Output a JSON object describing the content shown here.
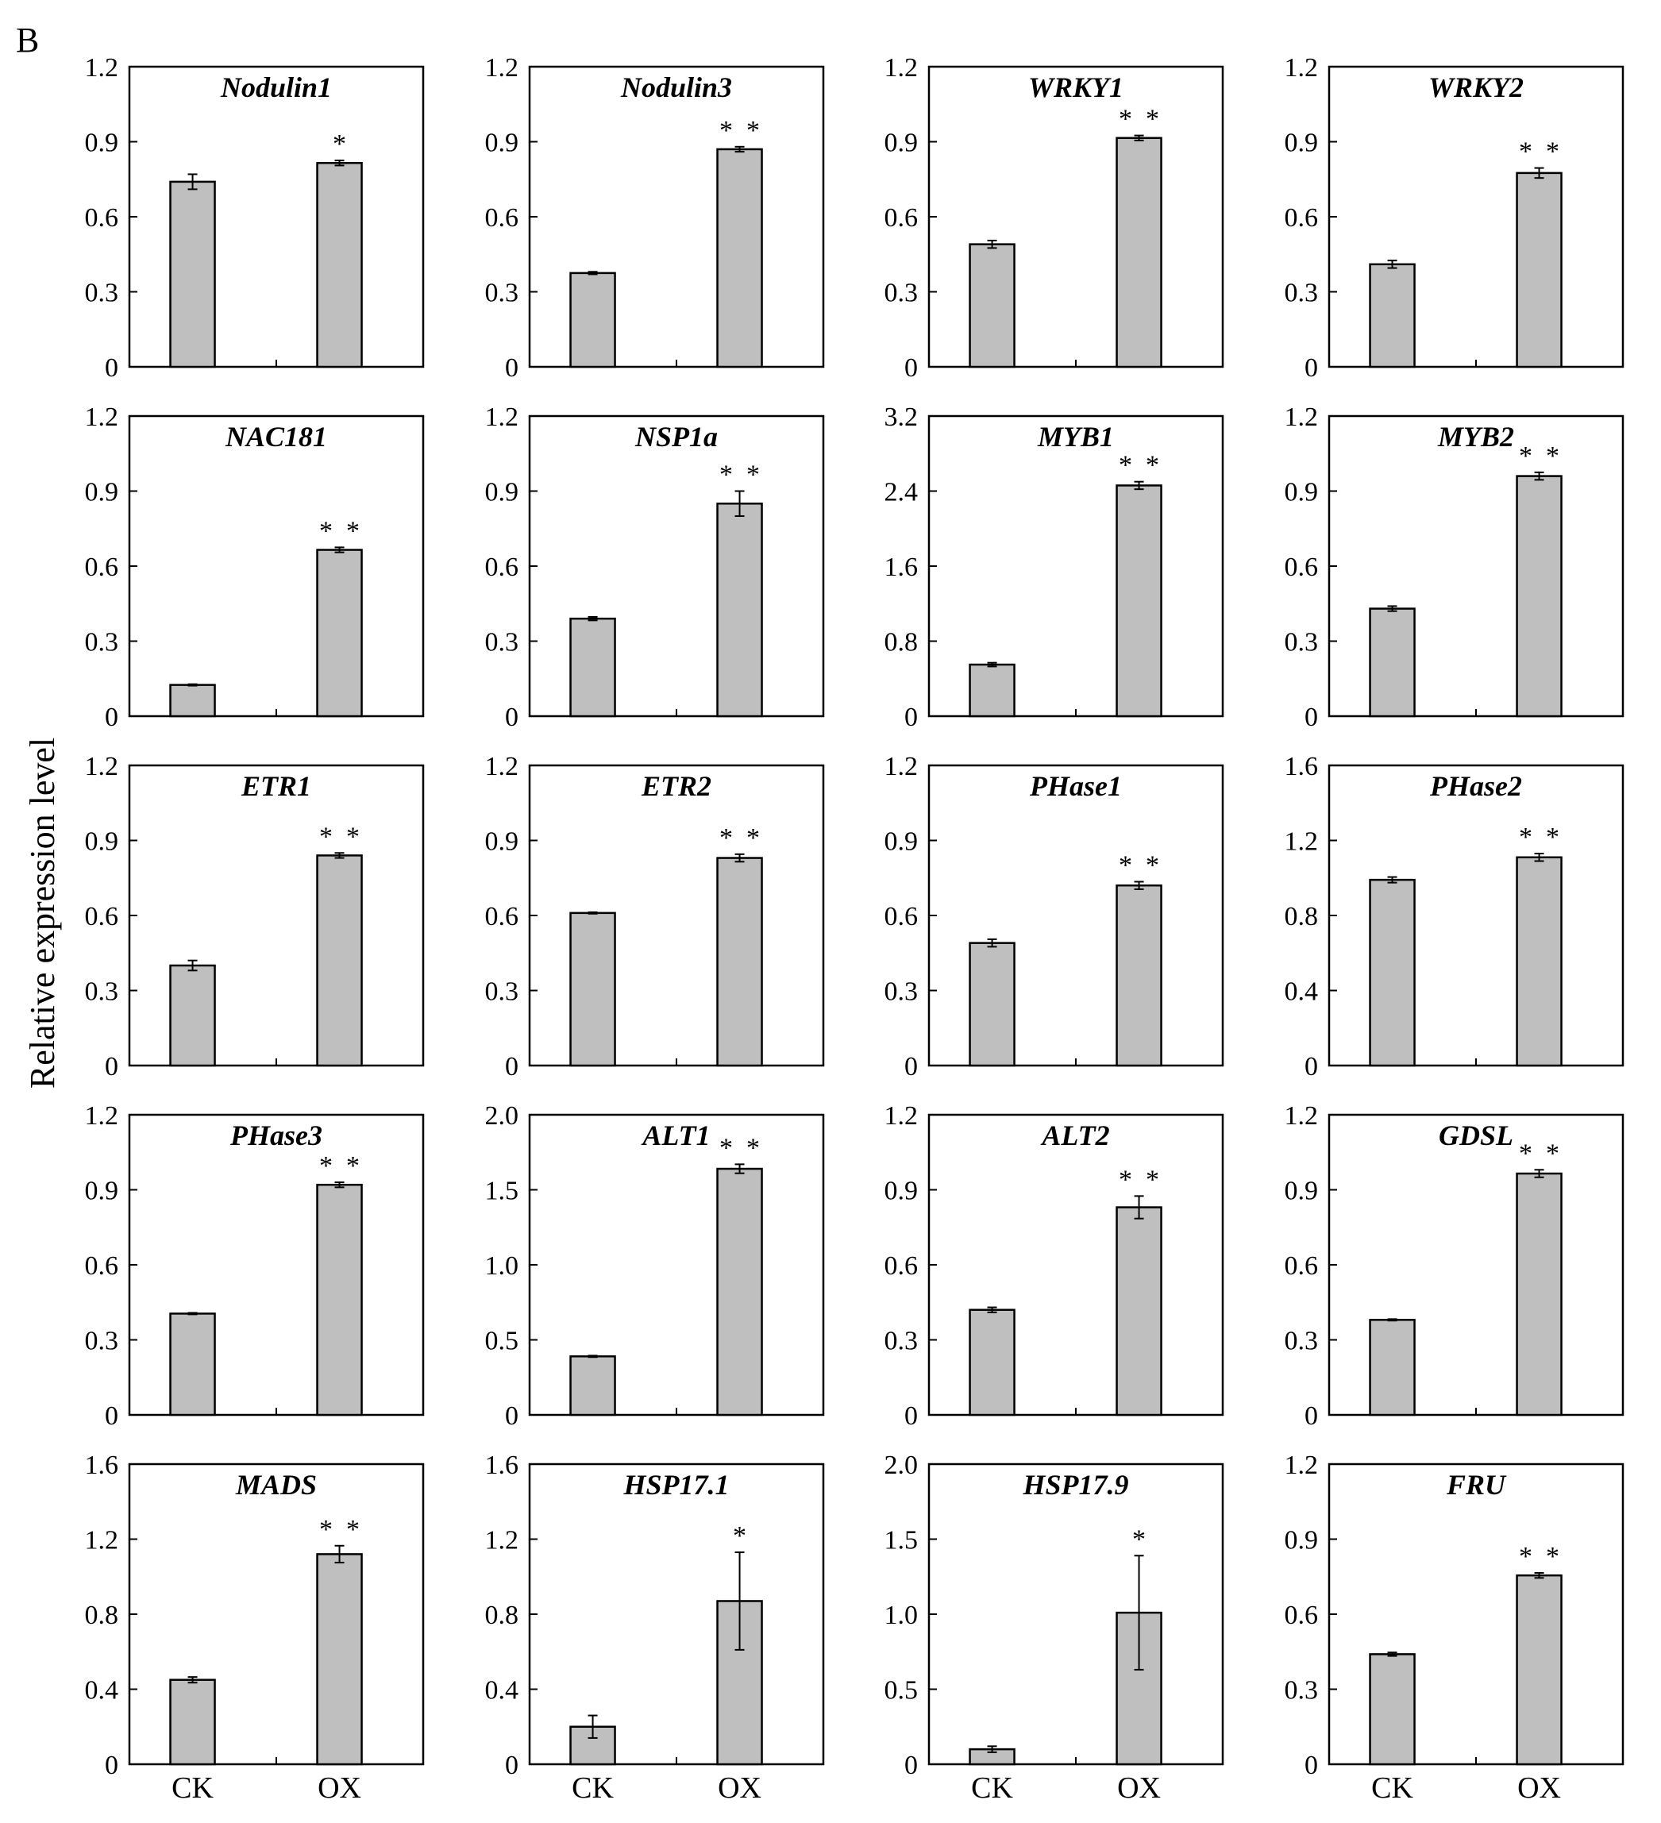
{
  "panel_label": "B",
  "ylabel": "Relative expression level",
  "chart_data": [
    {
      "type": "bar",
      "title": "Nodulin1",
      "categories": [
        "CK",
        "OX"
      ],
      "values": [
        0.74,
        0.815
      ],
      "errors": [
        0.03,
        0.01
      ],
      "significance": [
        "",
        "*"
      ],
      "ylim": [
        0,
        1.2
      ],
      "yticks": [
        "0",
        "0.3",
        "0.6",
        "0.9",
        "1.2"
      ],
      "ylabel": "Relative expression level"
    },
    {
      "type": "bar",
      "title": "Nodulin3",
      "categories": [
        "CK",
        "OX"
      ],
      "values": [
        0.375,
        0.87
      ],
      "errors": [
        0.005,
        0.01
      ],
      "significance": [
        "",
        "* *"
      ],
      "ylim": [
        0,
        1.2
      ],
      "yticks": [
        "0",
        "0.3",
        "0.6",
        "0.9",
        "1.2"
      ],
      "ylabel": "Relative expression level"
    },
    {
      "type": "bar",
      "title": "WRKY1",
      "categories": [
        "CK",
        "OX"
      ],
      "values": [
        0.49,
        0.915
      ],
      "errors": [
        0.015,
        0.01
      ],
      "significance": [
        "",
        "* *"
      ],
      "ylim": [
        0,
        1.2
      ],
      "yticks": [
        "0",
        "0.3",
        "0.6",
        "0.9",
        "1.2"
      ],
      "ylabel": "Relative expression level"
    },
    {
      "type": "bar",
      "title": "WRKY2",
      "categories": [
        "CK",
        "OX"
      ],
      "values": [
        0.41,
        0.775
      ],
      "errors": [
        0.015,
        0.02
      ],
      "significance": [
        "",
        "* *"
      ],
      "ylim": [
        0,
        1.2
      ],
      "yticks": [
        "0",
        "0.3",
        "0.6",
        "0.9",
        "1.2"
      ],
      "ylabel": "Relative expression level"
    },
    {
      "type": "bar",
      "title": "NAC181",
      "categories": [
        "CK",
        "OX"
      ],
      "values": [
        0.125,
        0.665
      ],
      "errors": [
        0.003,
        0.01
      ],
      "significance": [
        "",
        "* *"
      ],
      "ylim": [
        0,
        1.2
      ],
      "yticks": [
        "0",
        "0.3",
        "0.6",
        "0.9",
        "1.2"
      ],
      "ylabel": "Relative expression level"
    },
    {
      "type": "bar",
      "title": "NSP1a",
      "categories": [
        "CK",
        "OX"
      ],
      "values": [
        0.39,
        0.85
      ],
      "errors": [
        0.007,
        0.05
      ],
      "significance": [
        "",
        "* *"
      ],
      "ylim": [
        0,
        1.2
      ],
      "yticks": [
        "0",
        "0.3",
        "0.6",
        "0.9",
        "1.2"
      ],
      "ylabel": "Relative expression level"
    },
    {
      "type": "bar",
      "title": "MYB1",
      "categories": [
        "CK",
        "OX"
      ],
      "values": [
        0.55,
        2.46
      ],
      "errors": [
        0.02,
        0.04
      ],
      "significance": [
        "",
        "* *"
      ],
      "ylim": [
        0,
        3.2
      ],
      "yticks": [
        "0",
        "0.8",
        "1.6",
        "2.4",
        "3.2"
      ],
      "ylabel": "Relative expression level"
    },
    {
      "type": "bar",
      "title": "MYB2",
      "categories": [
        "CK",
        "OX"
      ],
      "values": [
        0.43,
        0.96
      ],
      "errors": [
        0.01,
        0.015
      ],
      "significance": [
        "",
        "* *"
      ],
      "ylim": [
        0,
        1.2
      ],
      "yticks": [
        "0",
        "0.3",
        "0.6",
        "0.9",
        "1.2"
      ],
      "ylabel": "Relative expression level"
    },
    {
      "type": "bar",
      "title": "ETR1",
      "categories": [
        "CK",
        "OX"
      ],
      "values": [
        0.4,
        0.84
      ],
      "errors": [
        0.02,
        0.01
      ],
      "significance": [
        "",
        "* *"
      ],
      "ylim": [
        0,
        1.2
      ],
      "yticks": [
        "0",
        "0.3",
        "0.6",
        "0.9",
        "1.2"
      ],
      "ylabel": "Relative expression level"
    },
    {
      "type": "bar",
      "title": "ETR2",
      "categories": [
        "CK",
        "OX"
      ],
      "values": [
        0.61,
        0.83
      ],
      "errors": [
        0.003,
        0.015
      ],
      "significance": [
        "",
        "* *"
      ],
      "ylim": [
        0,
        1.2
      ],
      "yticks": [
        "0",
        "0.3",
        "0.6",
        "0.9",
        "1.2"
      ],
      "ylabel": "Relative expression level"
    },
    {
      "type": "bar",
      "title": "PHase1",
      "categories": [
        "CK",
        "OX"
      ],
      "values": [
        0.49,
        0.72
      ],
      "errors": [
        0.015,
        0.015
      ],
      "significance": [
        "",
        "* *"
      ],
      "ylim": [
        0,
        1.2
      ],
      "yticks": [
        "0",
        "0.3",
        "0.6",
        "0.9",
        "1.2"
      ],
      "ylabel": "Relative expression level"
    },
    {
      "type": "bar",
      "title": "PHase2",
      "categories": [
        "CK",
        "OX"
      ],
      "values": [
        0.99,
        1.11
      ],
      "errors": [
        0.015,
        0.02
      ],
      "significance": [
        "",
        "* *"
      ],
      "ylim": [
        0,
        1.6
      ],
      "yticks": [
        "0",
        "0.4",
        "0.8",
        "1.2",
        "1.6"
      ],
      "ylabel": "Relative expression level"
    },
    {
      "type": "bar",
      "title": "PHase3",
      "categories": [
        "CK",
        "OX"
      ],
      "values": [
        0.405,
        0.92
      ],
      "errors": [
        0.003,
        0.01
      ],
      "significance": [
        "",
        "* *"
      ],
      "ylim": [
        0,
        1.2
      ],
      "yticks": [
        "0",
        "0.3",
        "0.6",
        "0.9",
        "1.2"
      ],
      "ylabel": "Relative expression level"
    },
    {
      "type": "bar",
      "title": "ALT1",
      "categories": [
        "CK",
        "OX"
      ],
      "values": [
        0.39,
        1.64
      ],
      "errors": [
        0.005,
        0.03
      ],
      "significance": [
        "",
        "* *"
      ],
      "ylim": [
        0,
        2.0
      ],
      "yticks": [
        "0",
        "0.5",
        "1.0",
        "1.5",
        "2.0"
      ],
      "ylabel": "Relative expression level"
    },
    {
      "type": "bar",
      "title": "ALT2",
      "categories": [
        "CK",
        "OX"
      ],
      "values": [
        0.42,
        0.83
      ],
      "errors": [
        0.01,
        0.045
      ],
      "significance": [
        "",
        "* *"
      ],
      "ylim": [
        0,
        1.2
      ],
      "yticks": [
        "0",
        "0.3",
        "0.6",
        "0.9",
        "1.2"
      ],
      "ylabel": "Relative expression level"
    },
    {
      "type": "bar",
      "title": "GDSL",
      "categories": [
        "CK",
        "OX"
      ],
      "values": [
        0.38,
        0.965
      ],
      "errors": [
        0.003,
        0.015
      ],
      "significance": [
        "",
        "* *"
      ],
      "ylim": [
        0,
        1.2
      ],
      "yticks": [
        "0",
        "0.3",
        "0.6",
        "0.9",
        "1.2"
      ],
      "ylabel": "Relative expression level"
    },
    {
      "type": "bar",
      "title": "MADS",
      "categories": [
        "CK",
        "OX"
      ],
      "values": [
        0.45,
        1.12
      ],
      "errors": [
        0.015,
        0.045
      ],
      "significance": [
        "",
        "* *"
      ],
      "ylim": [
        0,
        1.6
      ],
      "yticks": [
        "0",
        "0.4",
        "0.8",
        "1.2",
        "1.6"
      ],
      "ylabel": "Relative expression level"
    },
    {
      "type": "bar",
      "title": "HSP17.1",
      "categories": [
        "CK",
        "OX"
      ],
      "values": [
        0.2,
        0.87
      ],
      "errors": [
        0.06,
        0.26
      ],
      "significance": [
        "",
        "*"
      ],
      "ylim": [
        0,
        1.6
      ],
      "yticks": [
        "0",
        "0.4",
        "0.8",
        "1.2",
        "1.6"
      ],
      "ylabel": "Relative expression level"
    },
    {
      "type": "bar",
      "title": "HSP17.9",
      "categories": [
        "CK",
        "OX"
      ],
      "values": [
        0.1,
        1.01
      ],
      "errors": [
        0.02,
        0.38
      ],
      "significance": [
        "",
        "*"
      ],
      "ylim": [
        0,
        2.0
      ],
      "yticks": [
        "0",
        "0.5",
        "1.0",
        "1.5",
        "2.0"
      ],
      "ylabel": "Relative expression level"
    },
    {
      "type": "bar",
      "title": "FRU",
      "categories": [
        "CK",
        "OX"
      ],
      "values": [
        0.44,
        0.755
      ],
      "errors": [
        0.007,
        0.01
      ],
      "significance": [
        "",
        "* *"
      ],
      "ylim": [
        0,
        1.2
      ],
      "yticks": [
        "0",
        "0.3",
        "0.6",
        "0.9",
        "1.2"
      ],
      "ylabel": "Relative expression level"
    }
  ]
}
